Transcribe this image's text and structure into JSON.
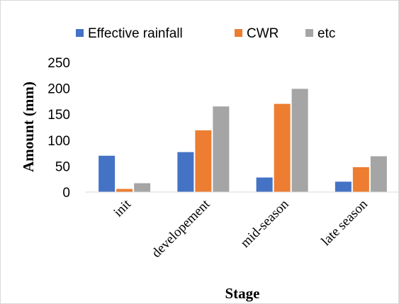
{
  "chart_data": {
    "type": "bar",
    "title": "",
    "xlabel": "Stage",
    "ylabel": "Amount (mm)",
    "ylim": [
      0,
      250
    ],
    "yticks": [
      0,
      50,
      100,
      150,
      200,
      250
    ],
    "grid": false,
    "legend_position": "top",
    "categories": [
      "init",
      "developement",
      "mid-season",
      "late season"
    ],
    "series": [
      {
        "name": "Effective rainfall",
        "color": "#4472c4",
        "values": [
          70,
          77,
          28,
          20
        ]
      },
      {
        "name": "CWR",
        "color": "#ed7d31",
        "values": [
          6,
          119,
          170,
          48
        ]
      },
      {
        "name": "etc",
        "color": "#a5a5a5",
        "values": [
          17,
          165,
          199,
          69
        ]
      }
    ]
  }
}
